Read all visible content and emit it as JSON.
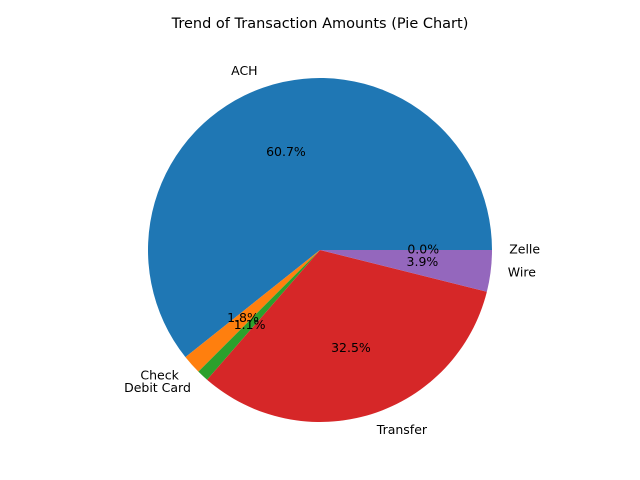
{
  "chart_data": {
    "type": "pie",
    "title": "Trend of Transaction Amounts (Pie Chart)",
    "start_angle": 0,
    "direction": "counterclockwise",
    "slices": [
      {
        "label": "ACH",
        "value": 60.7,
        "pct_label": "60.7%",
        "color": "#1f77b4"
      },
      {
        "label": "Check",
        "value": 1.8,
        "pct_label": "1.8%",
        "color": "#ff7f0e"
      },
      {
        "label": "Debit Card",
        "value": 1.1,
        "pct_label": "1.1%",
        "color": "#2ca02c"
      },
      {
        "label": "Transfer",
        "value": 32.5,
        "pct_label": "32.5%",
        "color": "#d62728"
      },
      {
        "label": "Wire",
        "value": 3.9,
        "pct_label": "3.9%",
        "color": "#9467bd"
      },
      {
        "label": "Zelle",
        "value": 0.0,
        "pct_label": "0.0%",
        "color": "#8c564b"
      }
    ]
  }
}
